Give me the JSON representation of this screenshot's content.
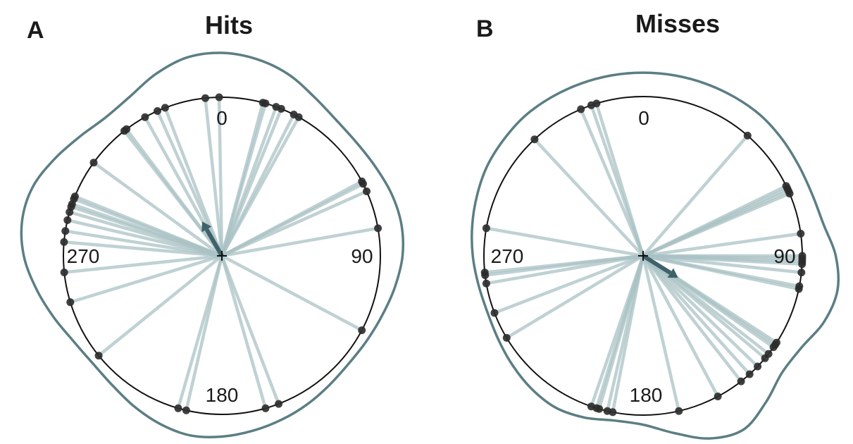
{
  "colors": {
    "spoke": "#a9c2c4",
    "mean_arrow": "#3f626a",
    "density_outline": "#5b7e84",
    "point": "#2b2b2b",
    "circle": "#111111"
  },
  "chart_data": [
    {
      "type": "circular-scatter",
      "panel": "A",
      "title": "Hits",
      "tick_labels": [
        "0",
        "90",
        "180",
        "270"
      ],
      "angles_deg": [
        -6,
        -1,
        15,
        16,
        20,
        22,
        27,
        29,
        62,
        63,
        66,
        80,
        118,
        159,
        164,
        193,
        196,
        231,
        253,
        264,
        275,
        279,
        283,
        286,
        288,
        289,
        291,
        292,
        306,
        322,
        323,
        331,
        336,
        339
      ],
      "mean_vector": {
        "angle_deg": 330,
        "length": 0.25
      },
      "density_radius": [
        1.28,
        1.26,
        1.22,
        1.16,
        1.12,
        1.11,
        1.12,
        1.14,
        1.15,
        1.14,
        1.11,
        1.08,
        1.06,
        1.05,
        1.06,
        1.08,
        1.1,
        1.12,
        1.14,
        1.15,
        1.13,
        1.1,
        1.07,
        1.06,
        1.08,
        1.13,
        1.19,
        1.25,
        1.28,
        1.27,
        1.22,
        1.17,
        1.14,
        1.16,
        1.22,
        1.27
      ]
    },
    {
      "type": "circular-scatter",
      "panel": "B",
      "title": "Misses",
      "tick_labels": [
        "0",
        "90",
        "180",
        "270"
      ],
      "angles_deg": [
        41,
        64,
        65,
        66,
        67,
        82,
        90,
        91,
        92,
        93,
        96,
        101,
        102,
        123,
        124,
        125,
        128,
        130,
        134,
        138,
        142,
        152,
        167,
        191,
        193,
        196,
        197,
        199,
        239,
        249,
        260,
        263,
        264,
        280,
        317,
        337,
        341,
        343
      ],
      "mean_vector": {
        "angle_deg": 122,
        "length": 0.26
      },
      "density_radius": [
        1.15,
        1.15,
        1.15,
        1.15,
        1.15,
        1.14,
        1.13,
        1.13,
        1.15,
        1.21,
        1.24,
        1.21,
        1.15,
        1.14,
        1.2,
        1.26,
        1.22,
        1.13,
        1.06,
        1.05,
        1.08,
        1.1,
        1.09,
        1.07,
        1.05,
        1.04,
        1.05,
        1.07,
        1.09,
        1.11,
        1.13,
        1.14,
        1.15,
        1.15,
        1.15,
        1.15
      ]
    }
  ]
}
